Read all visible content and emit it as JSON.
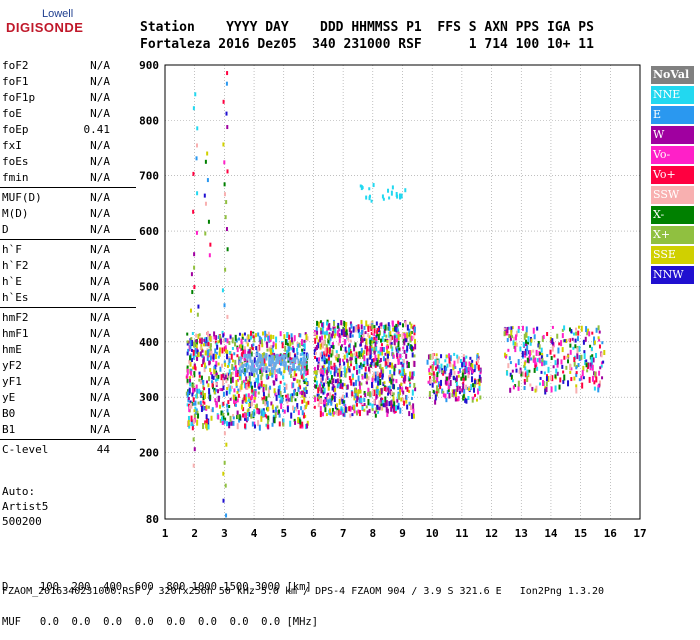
{
  "logo": {
    "line1": "Lowell",
    "line2": "DIGISONDE"
  },
  "header": {
    "labels": "Station    YYYY DAY    DDD HHMMSS P1  FFS S AXN PPS IGA PS",
    "values": "Fortaleza 2016 Dez05  340 231000 RSF      1 714 100 10+ 11"
  },
  "params": [
    {
      "name": "foF2",
      "value": "N/A"
    },
    {
      "name": "foF1",
      "value": "N/A"
    },
    {
      "name": "foF1p",
      "value": "N/A"
    },
    {
      "name": "foE",
      "value": "N/A"
    },
    {
      "name": "foEp",
      "value": "0.41"
    },
    {
      "name": "fxI",
      "value": "N/A"
    },
    {
      "name": "foEs",
      "value": "N/A"
    },
    {
      "name": "fmin",
      "value": "N/A"
    },
    {
      "name": "MUF(D)",
      "value": "N/A"
    },
    {
      "name": "M(D)",
      "value": "N/A"
    },
    {
      "name": "D",
      "value": "N/A"
    },
    {
      "name": "h`F",
      "value": "N/A"
    },
    {
      "name": "h`F2",
      "value": "N/A"
    },
    {
      "name": "h`E",
      "value": "N/A"
    },
    {
      "name": "h`Es",
      "value": "N/A"
    },
    {
      "name": "hmF2",
      "value": "N/A"
    },
    {
      "name": "hmF1",
      "value": "N/A"
    },
    {
      "name": "hmE",
      "value": "N/A"
    },
    {
      "name": "yF2",
      "value": "N/A"
    },
    {
      "name": "yF1",
      "value": "N/A"
    },
    {
      "name": "yE",
      "value": "N/A"
    },
    {
      "name": "B0",
      "value": "N/A"
    },
    {
      "name": "B1",
      "value": "N/A"
    },
    {
      "name": "C-level",
      "value": "44"
    }
  ],
  "artist": {
    "line1": "Auto:",
    "line2": "Artist5",
    "line3": "500200"
  },
  "legend": [
    {
      "label": "NoVal",
      "color": "#808080"
    },
    {
      "label": "NNE",
      "color": "#22d8f0"
    },
    {
      "label": "E",
      "color": "#2a98f0"
    },
    {
      "label": "W",
      "color": "#a000a0"
    },
    {
      "label": "Vo-",
      "color": "#ff20c8"
    },
    {
      "label": "Vo+",
      "color": "#ff0040"
    },
    {
      "label": "SSW",
      "color": "#f8b0b0"
    },
    {
      "label": "X-",
      "color": "#008000"
    },
    {
      "label": "X+",
      "color": "#90c040"
    },
    {
      "label": "SSE",
      "color": "#d0d000"
    },
    {
      "label": "NNW",
      "color": "#2010d0"
    }
  ],
  "footer": {
    "line1": "D     100  200  400  600  800 1000 1500 3000 [km]",
    "line2": "MUF   0.0  0.0  0.0  0.0  0.0  0.0  0.0  0.0 [MHz]",
    "file": "FZAOM_2016340231000.RSF / 320fx256h 50 kHz 5.0 km / DPS-4 FZAOM 904 / 3.9 S 321.6 E   Ion2Png 1.3.20"
  },
  "chart_data": {
    "type": "scatter",
    "x_label": "",
    "y_label": "",
    "xlim": [
      1,
      17
    ],
    "ylim": [
      80,
      900
    ],
    "x_ticks": [
      1,
      2,
      3,
      4,
      5,
      6,
      7,
      8,
      9,
      10,
      11,
      12,
      13,
      14,
      15,
      16,
      17
    ],
    "y_ticks": [
      900,
      800,
      700,
      600,
      500,
      400,
      300,
      200,
      80
    ],
    "grid": true,
    "clusters": [
      {
        "x_range": [
          1.7,
          5.8
        ],
        "y_range": [
          250,
          420
        ],
        "note": "dense"
      },
      {
        "x_range": [
          6.0,
          9.4
        ],
        "y_range": [
          270,
          440
        ],
        "note": "dense"
      },
      {
        "x_range": [
          9.8,
          11.6
        ],
        "y_range": [
          295,
          380
        ],
        "note": "mid"
      },
      {
        "x_range": [
          12.4,
          15.8
        ],
        "y_range": [
          315,
          430
        ],
        "note": "sparse"
      },
      {
        "x_range": [
          3.5,
          5.8
        ],
        "y_range": [
          350,
          380
        ],
        "note": "E band trace"
      },
      {
        "x_range": [
          7.5,
          9.2
        ],
        "y_range": [
          655,
          690
        ],
        "note": "echo"
      }
    ]
  }
}
